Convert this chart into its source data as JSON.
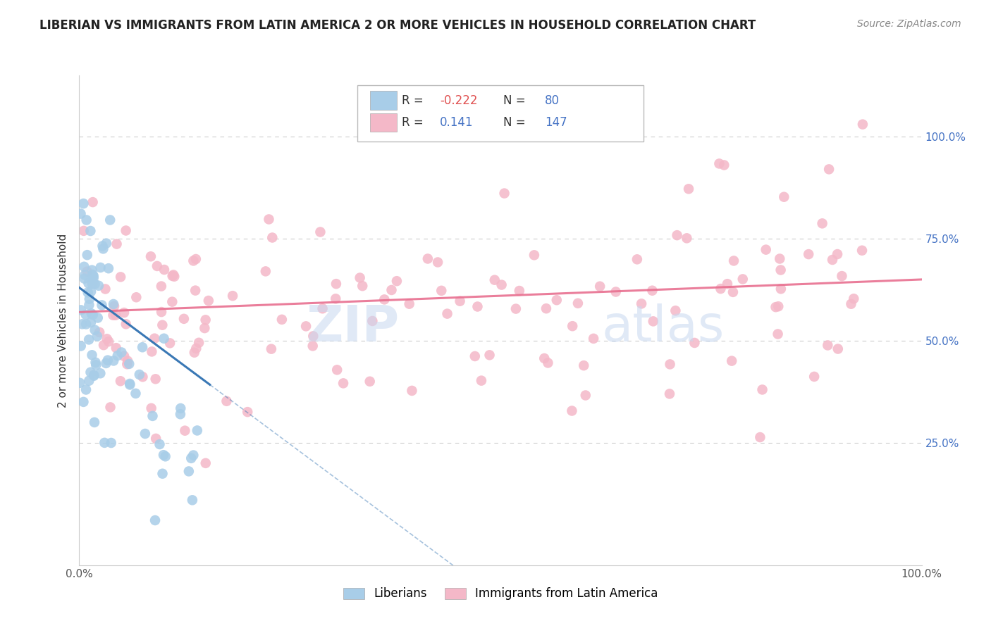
{
  "title": "LIBERIAN VS IMMIGRANTS FROM LATIN AMERICA 2 OR MORE VEHICLES IN HOUSEHOLD CORRELATION CHART",
  "source": "Source: ZipAtlas.com",
  "ylabel": "2 or more Vehicles in Household",
  "right_ytick_labels": [
    "100.0%",
    "75.0%",
    "50.0%",
    "25.0%"
  ],
  "right_ytick_values": [
    1.0,
    0.75,
    0.5,
    0.25
  ],
  "blue_R": -0.222,
  "blue_N": 80,
  "pink_R": 0.141,
  "pink_N": 147,
  "xlim": [
    0.0,
    1.0
  ],
  "ylim": [
    -0.05,
    1.15
  ],
  "blue_color": "#a8cde8",
  "blue_line_color": "#3a78b5",
  "pink_color": "#f4b8c8",
  "pink_line_color": "#e87090",
  "background_color": "#ffffff",
  "grid_color": "#cccccc",
  "legend_R_color": "#333333",
  "legend_val_negative_color": "#e05050",
  "legend_val_positive_color": "#4472c4",
  "legend_N_color": "#333333",
  "legend_N_val_color": "#4472c4",
  "right_axis_color": "#4472c4"
}
